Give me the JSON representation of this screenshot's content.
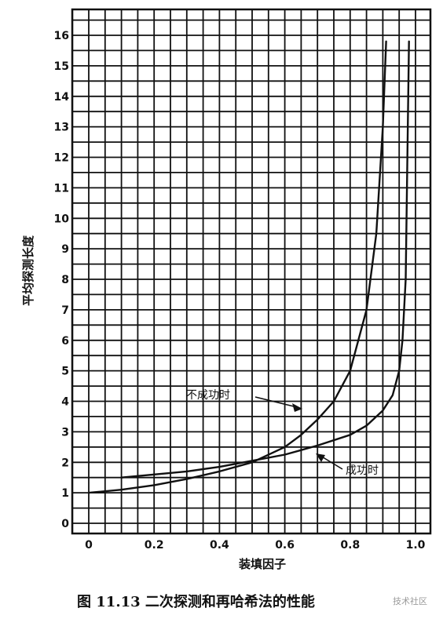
{
  "chart_data": {
    "type": "line",
    "xlabel": "装填因子",
    "ylabel": "平均探测长度",
    "xlim": [
      0,
      1.0
    ],
    "ylim": [
      0,
      16
    ],
    "x_ticks": [
      "0",
      "0.2",
      "0.4",
      "0.6",
      "0.8",
      "1.0"
    ],
    "y_ticks": [
      "0",
      "1",
      "2",
      "3",
      "4",
      "5",
      "6",
      "7",
      "8",
      "9",
      "10",
      "11",
      "12",
      "13",
      "14",
      "15",
      "16"
    ],
    "grid": true,
    "series": [
      {
        "name": "不成功时",
        "x": [
          0,
          0.1,
          0.2,
          0.3,
          0.4,
          0.5,
          0.6,
          0.65,
          0.7,
          0.75,
          0.8,
          0.85,
          0.88,
          0.9,
          0.91
        ],
        "y": [
          1.0,
          1.1,
          1.25,
          1.45,
          1.7,
          2.0,
          2.5,
          2.9,
          3.4,
          4.0,
          5.0,
          7.0,
          9.5,
          13.0,
          15.8
        ]
      },
      {
        "name": "成功时",
        "x": [
          0.1,
          0.2,
          0.3,
          0.4,
          0.5,
          0.6,
          0.7,
          0.8,
          0.85,
          0.9,
          0.93,
          0.95,
          0.96,
          0.97,
          0.98
        ],
        "y": [
          1.5,
          1.6,
          1.7,
          1.85,
          2.05,
          2.25,
          2.55,
          2.9,
          3.2,
          3.7,
          4.2,
          5.0,
          6.0,
          8.0,
          15.8
        ]
      }
    ],
    "annotations": [
      {
        "text": "不成功时",
        "series": "不成功时"
      },
      {
        "text": "成功时",
        "series": "成功时"
      }
    ]
  },
  "caption": "图 11.13   二次探测和再哈希法的性能",
  "watermark": "技术社区"
}
